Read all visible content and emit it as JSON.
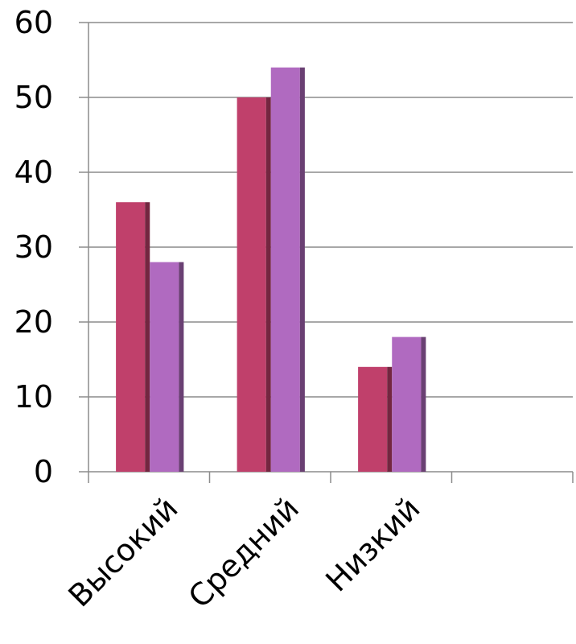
{
  "chart_data": {
    "type": "bar",
    "categories": [
      "Высокий",
      "Средний",
      "Низкий",
      ""
    ],
    "series": [
      {
        "values": [
          36,
          50,
          14,
          null
        ],
        "color": "#c0406b"
      },
      {
        "values": [
          28,
          54,
          18,
          null
        ],
        "color": "#b06ac0"
      }
    ],
    "ylim": [
      0,
      60
    ],
    "yticks": [
      0,
      10,
      20,
      30,
      40,
      50,
      60
    ],
    "grid": true,
    "legend": "none",
    "bar_style": "3d-side-shading"
  }
}
